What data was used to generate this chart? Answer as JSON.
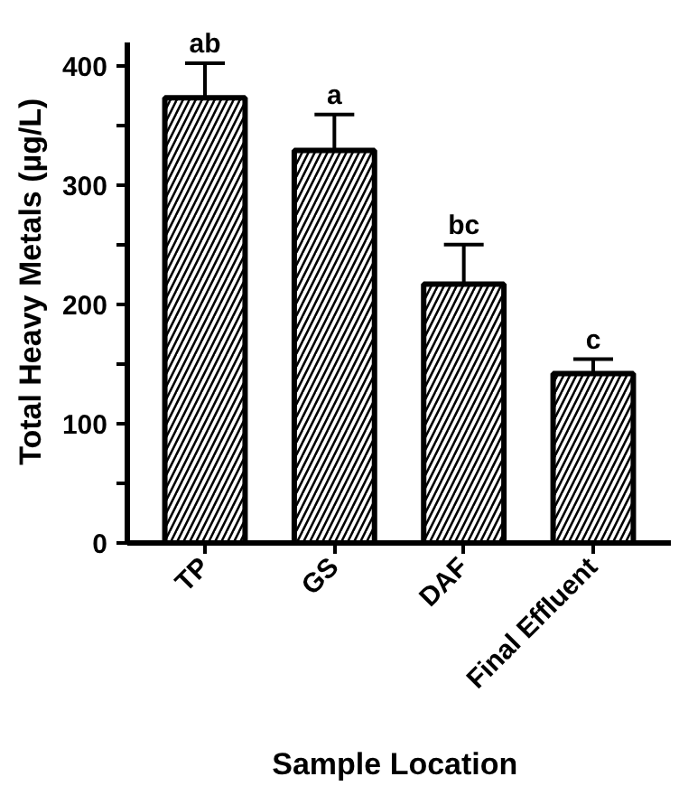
{
  "chart_data": {
    "type": "bar",
    "categories": [
      "TP",
      "GS",
      "DAF",
      "Final Effluent"
    ],
    "values": [
      373,
      329,
      217,
      142
    ],
    "errors": [
      29,
      30,
      33,
      12
    ],
    "color": "#000000",
    "xlabel": "Sample  Location",
    "ylabel": "Total  Heavy Metals (µg/L)",
    "ylim": [
      0,
      420
    ],
    "yticks": [
      0,
      {
        "value": 50,
        "label": null
      },
      100,
      {
        "value": 150,
        "label": null
      },
      200,
      {
        "value": 250,
        "label": null
      },
      300,
      {
        "value": 350,
        "label": null
      },
      400
    ],
    "annotations": [
      {
        "text": "ab",
        "x": "TP",
        "y": 402
      },
      {
        "text": "a",
        "x": "GS",
        "y": 359
      },
      {
        "text": "bc",
        "x": "DAF",
        "y": 250
      },
      {
        "text": "c",
        "x": "Final Effluent",
        "y": 154
      }
    ],
    "grid": false
  }
}
